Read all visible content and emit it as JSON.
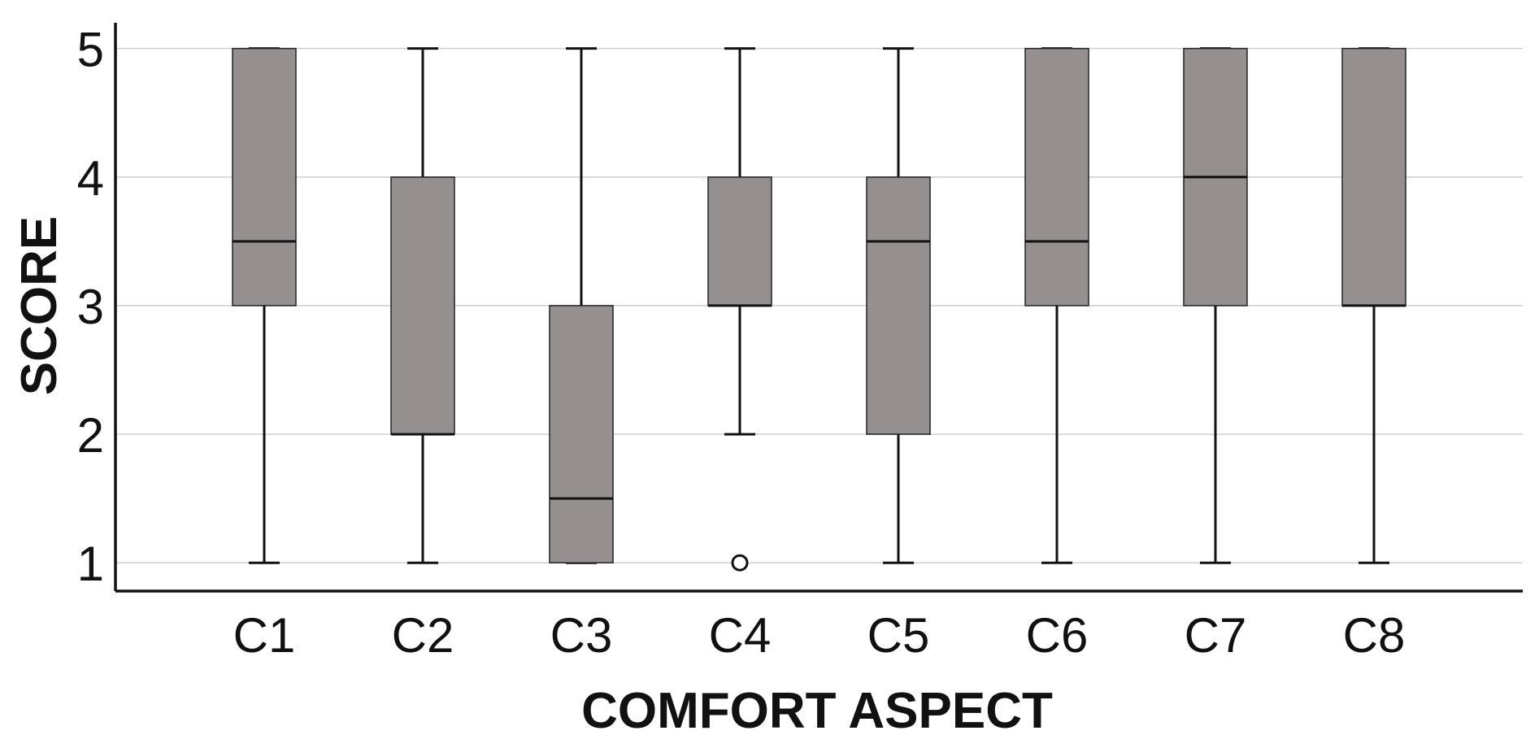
{
  "colors": {
    "box_fill": "#968f8f",
    "box_stroke": "#222222",
    "whisker": "#111111",
    "grid": "#cfcfcf",
    "axis": "#111111"
  },
  "chart_data": {
    "type": "boxplot",
    "title": "",
    "xlabel": "COMFORT ASPECT",
    "ylabel": "SCORE",
    "ylim": [
      0.78,
      5.2
    ],
    "yticks": [
      1,
      2,
      3,
      4,
      5
    ],
    "grid": true,
    "categories": [
      "C1",
      "C2",
      "C3",
      "C4",
      "C5",
      "C6",
      "C7",
      "C8"
    ],
    "boxes": [
      {
        "category": "C1",
        "min": 1,
        "q1": 3,
        "median": 3.5,
        "q3": 5,
        "max": 5,
        "outliers": []
      },
      {
        "category": "C2",
        "min": 1,
        "q1": 2,
        "median": 2,
        "q3": 4,
        "max": 5,
        "outliers": []
      },
      {
        "category": "C3",
        "min": 1,
        "q1": 1,
        "median": 1.5,
        "q3": 3,
        "max": 5,
        "outliers": []
      },
      {
        "category": "C4",
        "min": 2,
        "q1": 3,
        "median": 3,
        "q3": 4,
        "max": 5,
        "outliers": [
          1
        ]
      },
      {
        "category": "C5",
        "min": 1,
        "q1": 2,
        "median": 3.5,
        "q3": 4,
        "max": 5,
        "outliers": []
      },
      {
        "category": "C6",
        "min": 1,
        "q1": 3,
        "median": 3.5,
        "q3": 5,
        "max": 5,
        "outliers": []
      },
      {
        "category": "C7",
        "min": 1,
        "q1": 3,
        "median": 4,
        "q3": 5,
        "max": 5,
        "outliers": []
      },
      {
        "category": "C8",
        "min": 1,
        "q1": 3,
        "median": 3,
        "q3": 5,
        "max": 5,
        "outliers": []
      }
    ]
  }
}
